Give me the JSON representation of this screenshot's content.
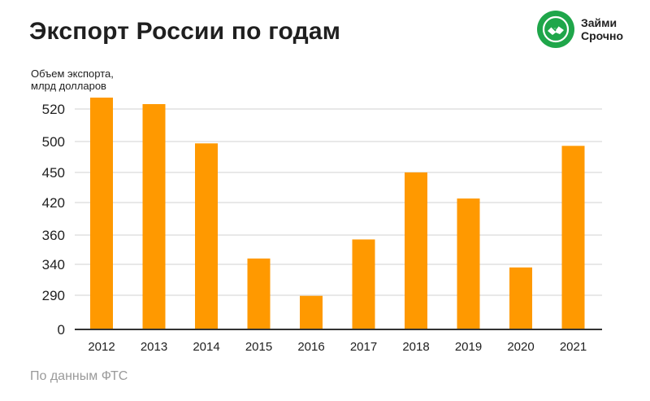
{
  "header": {
    "title": "Экспорт России по годам"
  },
  "logo": {
    "line1": "Займи",
    "line2": "Срочно",
    "color": "#1fa64a",
    "icon": "handshake-icon"
  },
  "footer": {
    "source": "По данным ФТС"
  },
  "colors": {
    "bar": "#ff9900",
    "grid": "#d9d9d9",
    "axis": "#333333",
    "text": "#1f1f1f"
  },
  "chart_data": {
    "type": "bar",
    "title": "Экспорт России по годам",
    "ylabel_lines": [
      "Объем экспорта,",
      "млрд долларов"
    ],
    "xlabel": "",
    "categories": [
      "2012",
      "2013",
      "2014",
      "2015",
      "2016",
      "2017",
      "2018",
      "2019",
      "2020",
      "2021"
    ],
    "values": [
      527,
      523,
      497,
      344,
      285,
      357,
      450,
      424,
      335,
      493
    ],
    "y_tick_labels": [
      "0",
      "290",
      "340",
      "360",
      "420",
      "450",
      "500",
      "520"
    ],
    "grid": true,
    "legend": "none"
  }
}
